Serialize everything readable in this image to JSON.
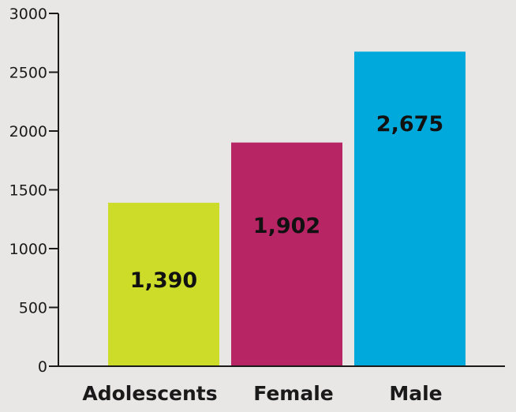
{
  "chart_data": {
    "type": "bar",
    "title": "",
    "xlabel": "",
    "ylabel": "",
    "categories": [
      "Adolescents",
      "Female",
      "Male"
    ],
    "values": [
      1390,
      1902,
      2675
    ],
    "value_labels": [
      "1,390",
      "1,902",
      "2,675"
    ],
    "colors": [
      "#cddc28",
      "#b72565",
      "#00a9dc"
    ],
    "ylim": [
      0,
      3000
    ],
    "yticks": [
      0,
      500,
      1000,
      1500,
      2000,
      2500,
      3000
    ],
    "ytick_labels": [
      "0",
      "500",
      "1000",
      "1500",
      "2000",
      "2500",
      "3000"
    ],
    "grid": false,
    "legend": "none"
  }
}
